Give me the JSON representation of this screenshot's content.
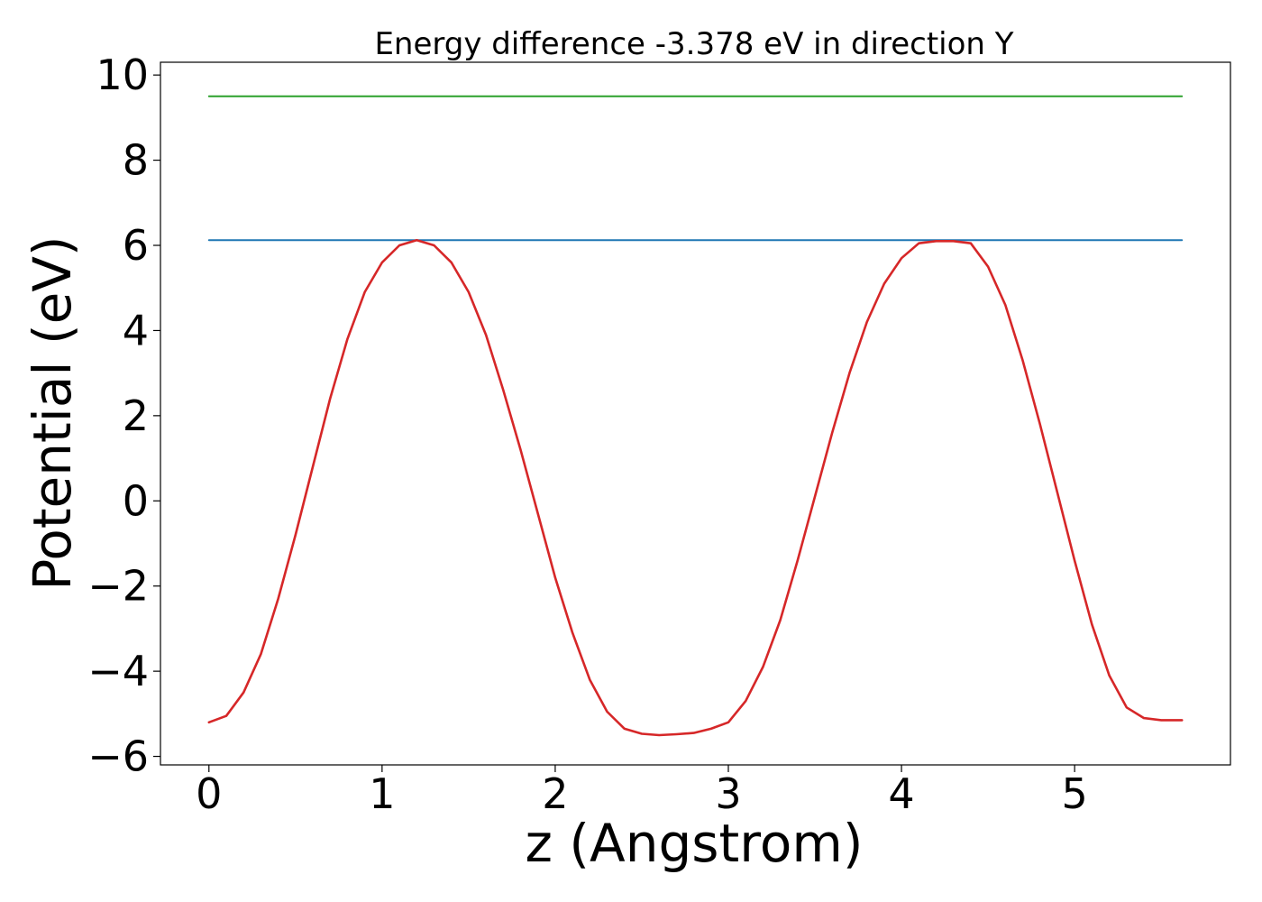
{
  "chart_data": {
    "type": "line",
    "title": "Energy difference -3.378 eV in direction Y",
    "xlabel": "z (Angstrom)",
    "ylabel": "Potential (eV)",
    "xlim": [
      -0.28,
      5.9
    ],
    "ylim": [
      -6.2,
      10.3
    ],
    "xticks": [
      0,
      1,
      2,
      3,
      4,
      5
    ],
    "xtick_labels": [
      "0",
      "1",
      "2",
      "3",
      "4",
      "5"
    ],
    "yticks": [
      -6,
      -4,
      -2,
      0,
      2,
      4,
      6,
      8,
      10
    ],
    "ytick_labels": [
      "−6",
      "−4",
      "−2",
      "0",
      "2",
      "4",
      "6",
      "8",
      "10"
    ],
    "grid": false,
    "legend": "none",
    "series": [
      {
        "color": "#2ca02c",
        "x": [
          0,
          5.62
        ],
        "y": [
          9.5,
          9.5
        ]
      },
      {
        "color": "#1f77b4",
        "x": [
          0,
          5.62
        ],
        "y": [
          6.12,
          6.12
        ]
      },
      {
        "color": "#d62728",
        "x": [
          0.0,
          0.1,
          0.2,
          0.3,
          0.4,
          0.5,
          0.6,
          0.7,
          0.8,
          0.9,
          1.0,
          1.1,
          1.2,
          1.3,
          1.4,
          1.5,
          1.6,
          1.7,
          1.8,
          1.9,
          2.0,
          2.1,
          2.2,
          2.3,
          2.4,
          2.5,
          2.6,
          2.7,
          2.8,
          2.9,
          3.0,
          3.1,
          3.2,
          3.3,
          3.4,
          3.5,
          3.6,
          3.7,
          3.8,
          3.9,
          4.0,
          4.1,
          4.2,
          4.3,
          4.4,
          4.5,
          4.6,
          4.7,
          4.8,
          4.9,
          5.0,
          5.1,
          5.2,
          5.3,
          5.4,
          5.5,
          5.62
        ],
        "y": [
          -5.2,
          -5.05,
          -4.5,
          -3.6,
          -2.3,
          -0.8,
          0.8,
          2.4,
          3.8,
          4.9,
          5.6,
          6.0,
          6.12,
          6.0,
          5.6,
          4.9,
          3.9,
          2.6,
          1.2,
          -0.3,
          -1.8,
          -3.1,
          -4.2,
          -4.95,
          -5.35,
          -5.47,
          -5.5,
          -5.48,
          -5.45,
          -5.35,
          -5.2,
          -4.7,
          -3.9,
          -2.8,
          -1.4,
          0.1,
          1.6,
          3.0,
          4.2,
          5.1,
          5.7,
          6.05,
          6.1,
          6.1,
          6.05,
          5.5,
          4.6,
          3.3,
          1.8,
          0.2,
          -1.4,
          -2.9,
          -4.1,
          -4.85,
          -5.1,
          -5.15,
          -5.15
        ]
      }
    ]
  }
}
